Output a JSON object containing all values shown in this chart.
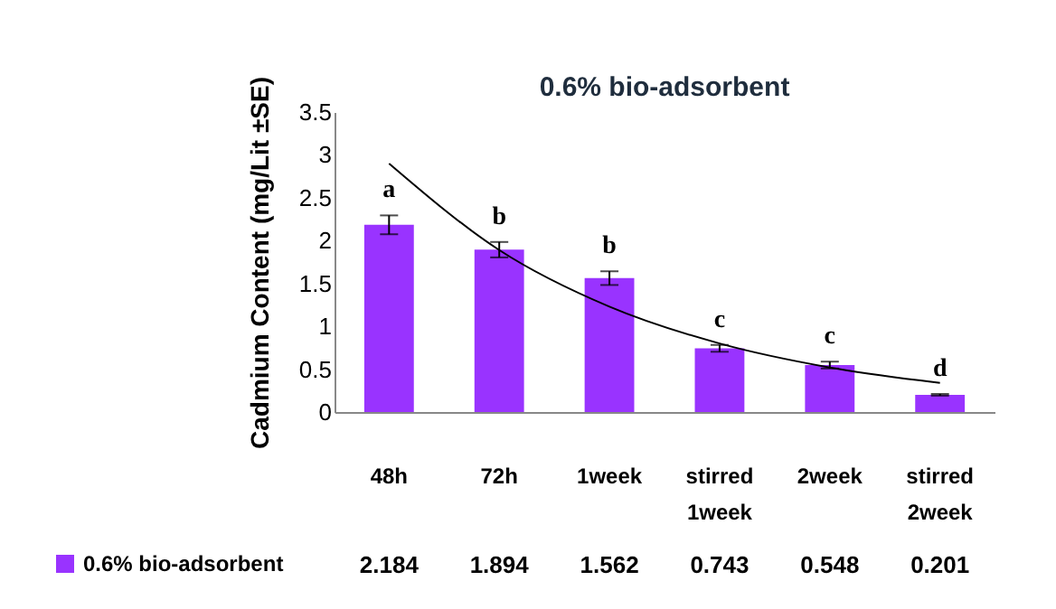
{
  "chart_data": {
    "type": "bar",
    "title": "0.6% bio-adsorbent",
    "ylabel": "Cadmium Content (mg/Lit ±SE)",
    "categories": [
      "48h",
      "72h",
      "1week",
      "stirred 1week",
      "2week",
      "stirred 2week"
    ],
    "series": [
      {
        "name": "0.6% bio-adsorbent",
        "color": "#9933ff",
        "values": [
          2.184,
          1.894,
          1.562,
          0.743,
          0.548,
          0.201
        ],
        "errors": [
          0.11,
          0.09,
          0.08,
          0.04,
          0.04,
          0.01
        ],
        "value_labels": [
          "2.184",
          "1.894",
          "1.562",
          "0.743",
          "0.548",
          "0.201"
        ]
      },
      {
        "type": "line",
        "color": "#000000",
        "values": [
          2.9,
          1.89,
          1.23,
          0.8,
          0.52,
          0.34
        ]
      }
    ],
    "ylim": [
      0,
      3.5
    ],
    "yticks": [
      0,
      0.5,
      1,
      1.5,
      2,
      2.5,
      3,
      3.5
    ],
    "legend": "bottom left",
    "annotations": [
      "a",
      "b",
      "b",
      "c",
      "c",
      "d"
    ]
  }
}
